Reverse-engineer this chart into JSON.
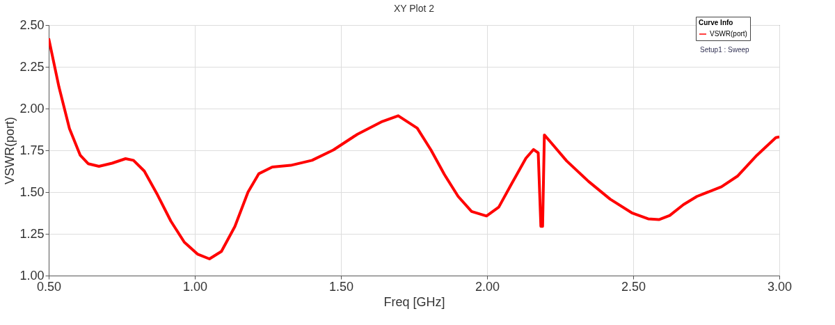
{
  "chart_data": {
    "type": "line",
    "title": "XY Plot 2",
    "xlabel": "Freq [GHz]",
    "ylabel": "VSWR(port)",
    "legend_title": "Curve Info",
    "legend": "top right",
    "grid": true,
    "marker": "none",
    "line_style": "solid",
    "xlim": [
      0.5,
      3.0
    ],
    "ylim": [
      1.0,
      2.5
    ],
    "xticks": [
      {
        "value": 0.5,
        "label": "0.50"
      },
      {
        "value": 1.0,
        "label": "1.00"
      },
      {
        "value": 1.5,
        "label": "1.50"
      },
      {
        "value": 2.0,
        "label": "2.00"
      },
      {
        "value": 2.5,
        "label": "2.50"
      },
      {
        "value": 3.0,
        "label": "3.00"
      }
    ],
    "yticks": [
      {
        "value": 1.0,
        "label": "1.00"
      },
      1.25,
      {
        "value": 1.5,
        "label": "1.50"
      },
      1.75,
      {
        "value": 2.0,
        "label": "2.00"
      },
      2.25,
      {
        "value": 2.5,
        "label": "2.50"
      }
    ],
    "annotations": [
      "Setup1 : Sweep"
    ],
    "series": [
      {
        "name": "VSWR(port)",
        "color": "#ff0000",
        "x": [
          0.5,
          0.535,
          0.571,
          0.608,
          0.635,
          0.672,
          0.717,
          0.763,
          0.79,
          0.827,
          0.872,
          0.918,
          0.964,
          1.009,
          1.05,
          1.091,
          1.137,
          1.182,
          1.219,
          1.265,
          1.328,
          1.401,
          1.474,
          1.556,
          1.638,
          1.696,
          1.761,
          1.808,
          1.854,
          1.901,
          1.947,
          1.998,
          2.04,
          2.086,
          2.133,
          2.159,
          2.175,
          2.184,
          2.19,
          2.196,
          2.217,
          2.272,
          2.347,
          2.421,
          2.495,
          2.551,
          2.588,
          2.625,
          2.672,
          2.718,
          2.802,
          2.858,
          2.923,
          2.988,
          3.0
        ],
        "values": [
          2.42,
          2.13,
          1.88,
          1.72,
          1.67,
          1.654,
          1.673,
          1.7,
          1.69,
          1.626,
          1.484,
          1.326,
          1.2,
          1.129,
          1.1,
          1.145,
          1.294,
          1.5,
          1.61,
          1.65,
          1.66,
          1.69,
          1.752,
          1.846,
          1.92,
          1.957,
          1.883,
          1.752,
          1.605,
          1.474,
          1.384,
          1.357,
          1.41,
          1.556,
          1.703,
          1.755,
          1.735,
          1.295,
          1.295,
          1.842,
          1.8,
          1.687,
          1.564,
          1.458,
          1.376,
          1.34,
          1.335,
          1.36,
          1.425,
          1.474,
          1.532,
          1.597,
          1.72,
          1.826,
          1.83
        ]
      }
    ]
  }
}
